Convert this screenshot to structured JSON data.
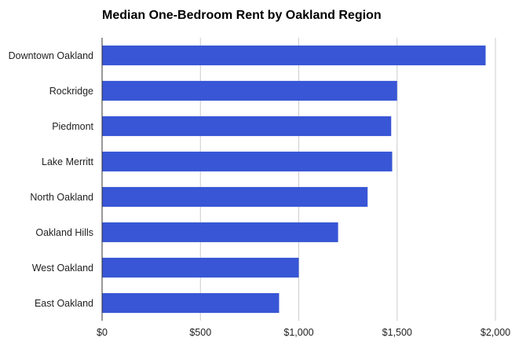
{
  "chart_data": {
    "type": "bar",
    "orientation": "horizontal",
    "title": "Median One-Bedroom Rent by Oakland Region",
    "xlabel": "",
    "ylabel": "",
    "categories": [
      "Downtown Oakland",
      "Rockridge",
      "Piedmont",
      "Lake Merritt",
      "North Oakland",
      "Oakland Hills",
      "West Oakland",
      "East Oakland"
    ],
    "values": [
      1950,
      1500,
      1470,
      1475,
      1350,
      1200,
      1000,
      900
    ],
    "xlim": [
      0,
      2000
    ],
    "ticks": [
      0,
      500,
      1000,
      1500,
      2000
    ],
    "tick_labels": [
      "$0",
      "$500",
      "$1,000",
      "$1,500",
      "$2,000"
    ],
    "grid": true,
    "bar_color": "#3856D5",
    "grid_color": "#CCCCCC"
  }
}
